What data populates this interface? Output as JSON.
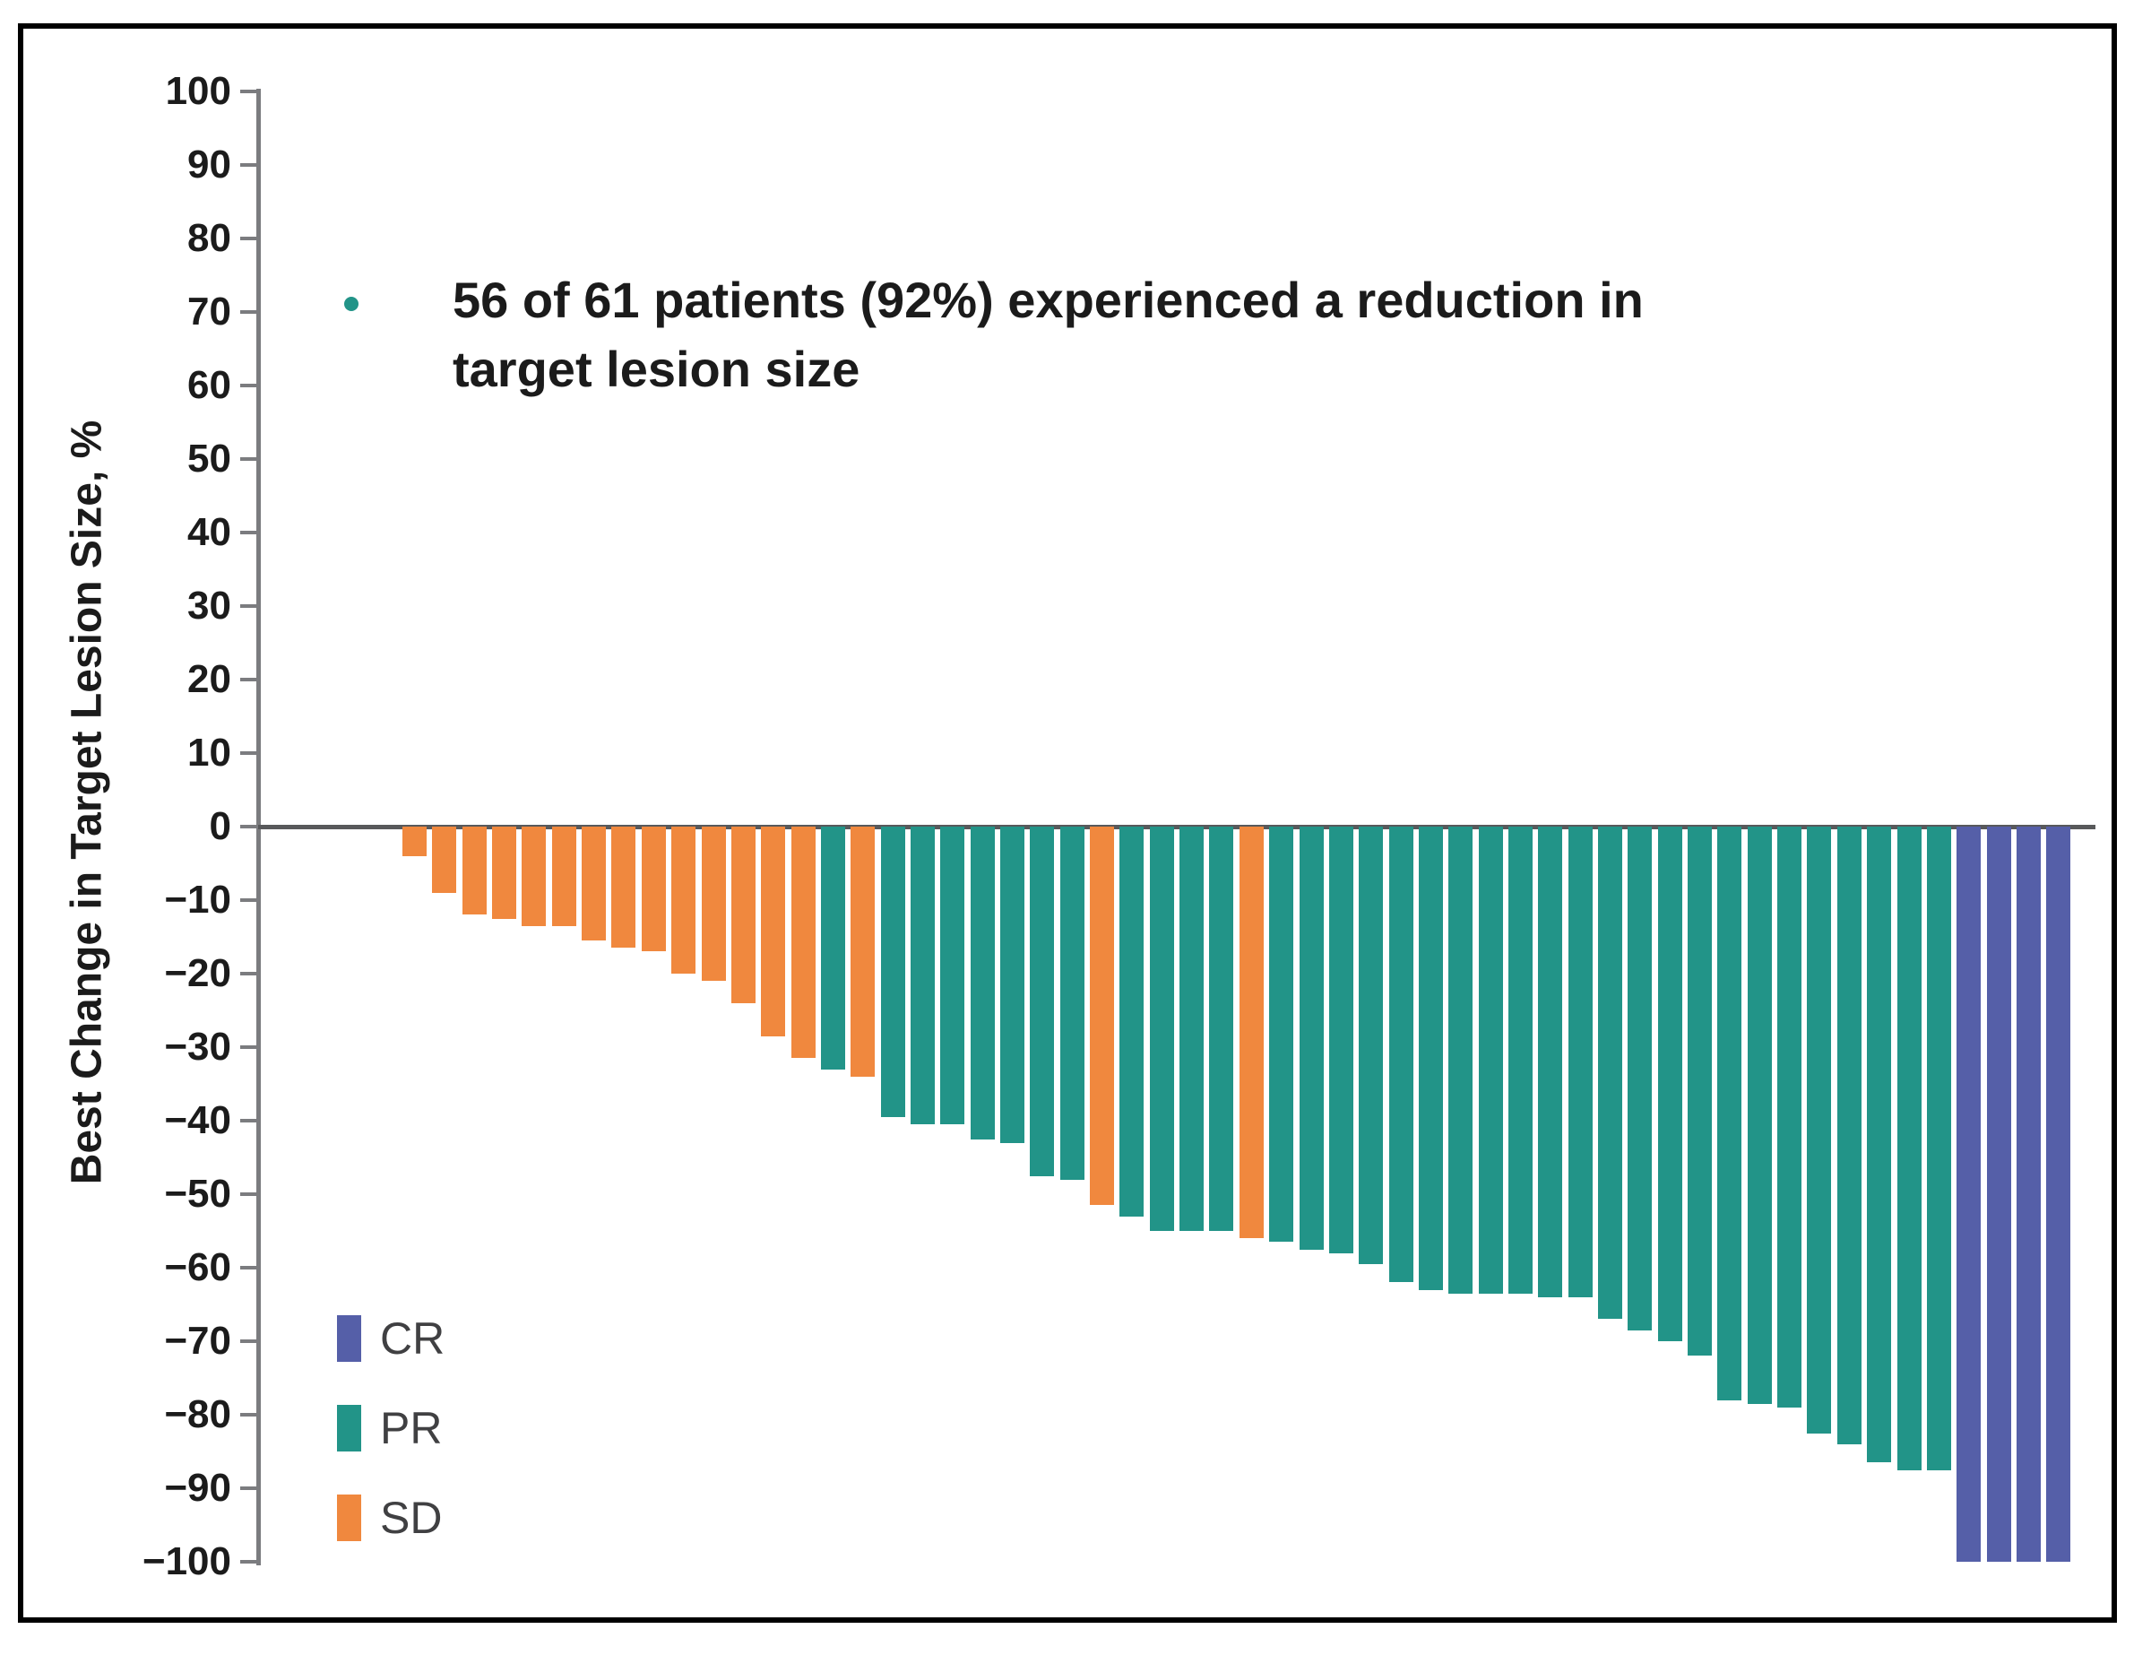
{
  "figure": {
    "y_axis_title": "Best Change in Target Lesion Size, %",
    "annotation": {
      "line1": "56 of 61 patients (92%) experienced a reduction in",
      "line2": "target lesion size",
      "bullet_color": "#229488"
    }
  },
  "chart_data": {
    "type": "bar",
    "subtype": "waterfall",
    "title": "",
    "xlabel": "",
    "ylabel": "Best Change in Target Lesion Size, %",
    "ylim": [
      -100,
      100
    ],
    "grid": false,
    "legend_position": "lower-left",
    "annotation": "56 of 61 patients (92%) experienced a reduction in target lesion size",
    "colors": {
      "CR": "#555FA8",
      "PR": "#229488",
      "SD": "#F0883E"
    },
    "legend": [
      {
        "label": "CR",
        "response": "CR"
      },
      {
        "label": "PR",
        "response": "PR"
      },
      {
        "label": "SD",
        "response": "SD"
      }
    ],
    "yticks": [
      {
        "v": 100,
        "label": "100"
      },
      {
        "v": 90,
        "label": "90"
      },
      {
        "v": 80,
        "label": "80"
      },
      {
        "v": 70,
        "label": "70"
      },
      {
        "v": 60,
        "label": "60"
      },
      {
        "v": 50,
        "label": "50"
      },
      {
        "v": 40,
        "label": "40"
      },
      {
        "v": 30,
        "label": "30"
      },
      {
        "v": 20,
        "label": "20"
      },
      {
        "v": 10,
        "label": "10"
      },
      {
        "v": 0,
        "label": "0"
      },
      {
        "v": -10,
        "label": "−10"
      },
      {
        "v": -20,
        "label": "−20"
      },
      {
        "v": -30,
        "label": "−30"
      },
      {
        "v": -40,
        "label": "−40"
      },
      {
        "v": -50,
        "label": "−50"
      },
      {
        "v": -60,
        "label": "−60"
      },
      {
        "v": -70,
        "label": "−70"
      },
      {
        "v": -80,
        "label": "−80"
      },
      {
        "v": -90,
        "label": "−90"
      },
      {
        "v": -100,
        "label": "−100"
      }
    ],
    "n_patients_total": 61,
    "n_bars_visible": 56,
    "empty_leading_slots": 5,
    "bars": [
      {
        "v": -4,
        "r": "SD"
      },
      {
        "v": -9,
        "r": "SD"
      },
      {
        "v": -12,
        "r": "SD"
      },
      {
        "v": -12.5,
        "r": "SD"
      },
      {
        "v": -13.5,
        "r": "SD"
      },
      {
        "v": -13.5,
        "r": "SD"
      },
      {
        "v": -15.5,
        "r": "SD"
      },
      {
        "v": -16.5,
        "r": "SD"
      },
      {
        "v": -17,
        "r": "SD"
      },
      {
        "v": -20,
        "r": "SD"
      },
      {
        "v": -21,
        "r": "SD"
      },
      {
        "v": -24,
        "r": "SD"
      },
      {
        "v": -28.5,
        "r": "SD"
      },
      {
        "v": -31.5,
        "r": "SD"
      },
      {
        "v": -33,
        "r": "PR"
      },
      {
        "v": -34,
        "r": "SD"
      },
      {
        "v": -39.5,
        "r": "PR"
      },
      {
        "v": -40.5,
        "r": "PR"
      },
      {
        "v": -40.5,
        "r": "PR"
      },
      {
        "v": -42.5,
        "r": "PR"
      },
      {
        "v": -43,
        "r": "PR"
      },
      {
        "v": -47.5,
        "r": "PR"
      },
      {
        "v": -48,
        "r": "PR"
      },
      {
        "v": -51.5,
        "r": "SD"
      },
      {
        "v": -53,
        "r": "PR"
      },
      {
        "v": -55,
        "r": "PR"
      },
      {
        "v": -55,
        "r": "PR"
      },
      {
        "v": -55,
        "r": "PR"
      },
      {
        "v": -56,
        "r": "SD"
      },
      {
        "v": -56.5,
        "r": "PR"
      },
      {
        "v": -57.5,
        "r": "PR"
      },
      {
        "v": -58,
        "r": "PR"
      },
      {
        "v": -59.5,
        "r": "PR"
      },
      {
        "v": -62,
        "r": "PR"
      },
      {
        "v": -63,
        "r": "PR"
      },
      {
        "v": -63.5,
        "r": "PR"
      },
      {
        "v": -63.5,
        "r": "PR"
      },
      {
        "v": -63.5,
        "r": "PR"
      },
      {
        "v": -64,
        "r": "PR"
      },
      {
        "v": -64,
        "r": "PR"
      },
      {
        "v": -67,
        "r": "PR"
      },
      {
        "v": -68.5,
        "r": "PR"
      },
      {
        "v": -70,
        "r": "PR"
      },
      {
        "v": -72,
        "r": "PR"
      },
      {
        "v": -78,
        "r": "PR"
      },
      {
        "v": -78.5,
        "r": "PR"
      },
      {
        "v": -79,
        "r": "PR"
      },
      {
        "v": -82.5,
        "r": "PR"
      },
      {
        "v": -84,
        "r": "PR"
      },
      {
        "v": -86.5,
        "r": "PR"
      },
      {
        "v": -87.5,
        "r": "PR"
      },
      {
        "v": -87.5,
        "r": "PR"
      },
      {
        "v": -100,
        "r": "CR"
      },
      {
        "v": -100,
        "r": "CR"
      },
      {
        "v": -100,
        "r": "CR"
      },
      {
        "v": -100,
        "r": "CR"
      }
    ]
  }
}
